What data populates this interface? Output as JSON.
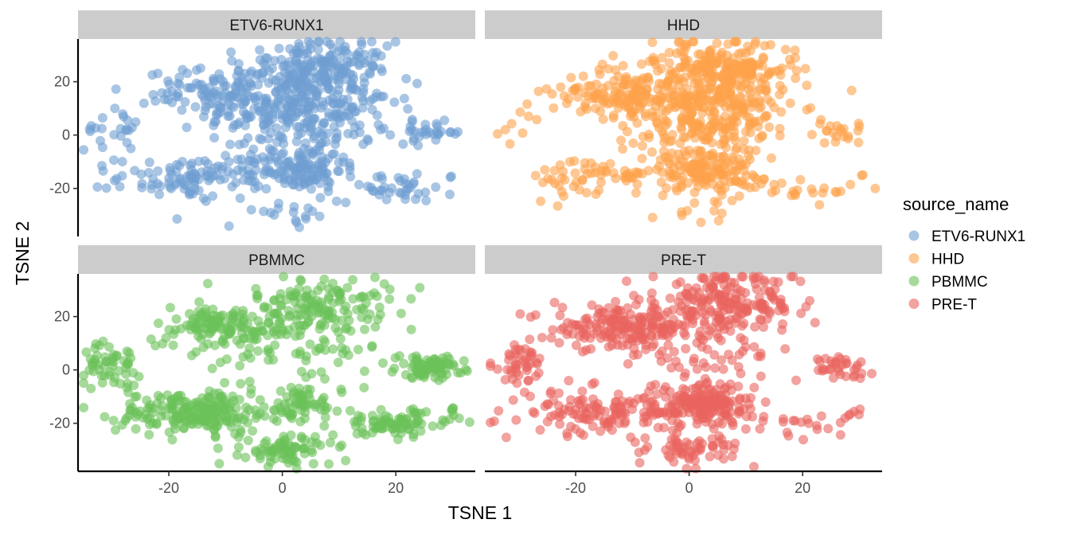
{
  "chart_data": {
    "type": "scatter",
    "facet_var": "source_name",
    "facets": [
      "ETV6-RUNX1",
      "HHD",
      "PBMMC",
      "PRE-T"
    ],
    "xlabel": "TSNE 1",
    "ylabel": "TSNE 2",
    "xlim": [
      -36,
      34
    ],
    "ylim": [
      -38,
      36
    ],
    "x_ticks": [
      -20,
      0,
      20
    ],
    "y_ticks": [
      -20,
      0,
      20
    ],
    "x_tick_labels": [
      "-20",
      "0",
      "20"
    ],
    "y_tick_labels": [
      "-20",
      "0",
      "20"
    ],
    "grid": false,
    "legend_position": "right",
    "legend": {
      "title": "source_name",
      "items": [
        {
          "label": "ETV6-RUNX1",
          "color": "#6F9FD2"
        },
        {
          "label": "HHD",
          "color": "#FEA24B"
        },
        {
          "label": "PBMMC",
          "color": "#6BC159"
        },
        {
          "label": "PRE-T",
          "color": "#E9645F"
        }
      ]
    },
    "clusters": [
      {
        "name": "central",
        "x": 3,
        "y": 12,
        "sx": 8,
        "sy": 11
      },
      {
        "name": "central-upper-right",
        "x": 7,
        "y": 25,
        "sx": 6,
        "sy": 5
      },
      {
        "name": "upper-left-arm",
        "x": -12,
        "y": 16,
        "sx": 6,
        "sy": 4
      },
      {
        "name": "far-left",
        "x": -30,
        "y": 2,
        "sx": 2.5,
        "sy": 4
      },
      {
        "name": "lower-left-band",
        "x": -15,
        "y": -16,
        "sx": 7,
        "sy": 4
      },
      {
        "name": "center-bottom-blob",
        "x": 1,
        "y": -30,
        "sx": 4,
        "sy": 3
      },
      {
        "name": "lower-right-band",
        "x": 20,
        "y": -20,
        "sx": 5,
        "sy": 2.5
      },
      {
        "name": "right-small",
        "x": 26,
        "y": 1,
        "sx": 3,
        "sy": 2
      },
      {
        "name": "right-tiny",
        "x": 30,
        "y": -15,
        "sx": 0.5,
        "sy": 1
      },
      {
        "name": "center-lower-blob",
        "x": 3,
        "y": -13,
        "sx": 4,
        "sy": 4
      }
    ],
    "series": [
      {
        "name": "ETV6-RUNX1",
        "color": "#6F9FD2",
        "weights": [
          10,
          3,
          2,
          0.6,
          3,
          0.4,
          1,
          0.8,
          0.05,
          3
        ]
      },
      {
        "name": "HHD",
        "color": "#FEA24B",
        "weights": [
          10,
          3,
          2.5,
          0.2,
          1.5,
          0.3,
          0.6,
          0.5,
          0.05,
          3
        ]
      },
      {
        "name": "PBMMC",
        "color": "#6BC159",
        "weights": [
          2,
          2,
          2,
          1,
          4,
          1.5,
          1.5,
          1.5,
          0.1,
          1
        ]
      },
      {
        "name": "PRE-T",
        "color": "#E9645F",
        "weights": [
          2,
          3,
          3,
          0.8,
          2.5,
          1,
          0.4,
          0.6,
          0.05,
          3
        ]
      }
    ]
  }
}
